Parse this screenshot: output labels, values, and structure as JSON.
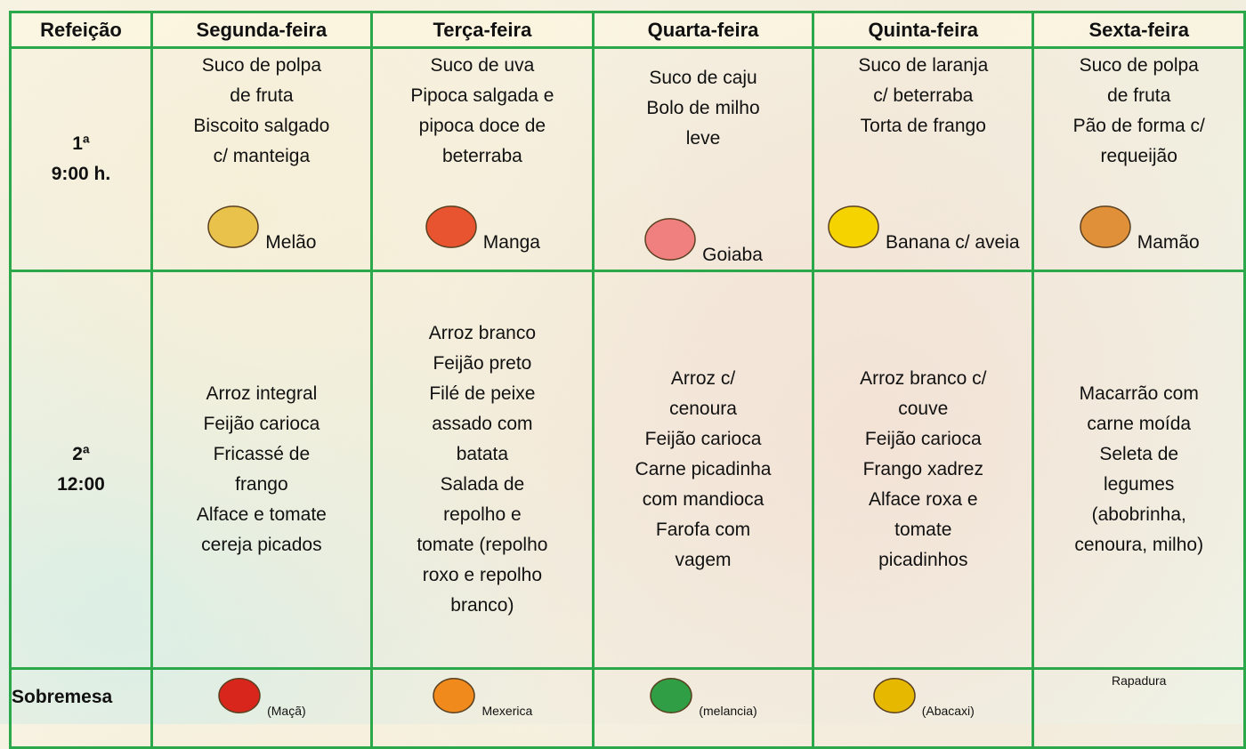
{
  "table": {
    "header": [
      "Refeição",
      "Segunda-feira",
      "Terça-feira",
      "Quarta-feira",
      "Quinta-feira",
      "Sexta-feira"
    ],
    "rows": [
      {
        "label": [
          "1ª",
          "9:00 h."
        ],
        "cells": [
          {
            "lines": [
              "Suco de polpa",
              "de fruta",
              "Biscoito salgado",
              "c/ manteiga"
            ],
            "fruit": "Melão"
          },
          {
            "lines": [
              "Suco de uva",
              "Pipoca salgada e",
              "pipoca doce de",
              "beterraba"
            ],
            "fruit": "Manga"
          },
          {
            "lines": [
              "Suco de caju",
              "Bolo de milho",
              "leve"
            ],
            "fruit": "Goiaba"
          },
          {
            "lines": [
              "Suco de laranja",
              "c/ beterraba",
              "Torta de frango"
            ],
            "fruit": "Banana c/ aveia"
          },
          {
            "lines": [
              "Suco de polpa",
              "de fruta",
              "Pão de forma c/",
              "requeijão"
            ],
            "fruit": "Mamão"
          }
        ]
      },
      {
        "label": [
          "2ª",
          "12:00"
        ],
        "cells": [
          {
            "lines": [
              "Arroz integral",
              "Feijão carioca",
              "Fricassé de",
              "frango",
              "Alface e tomate",
              "cereja picados"
            ]
          },
          {
            "lines": [
              "Arroz branco",
              "Feijão preto",
              "Filé de peixe",
              "assado com",
              "batata",
              "Salada de",
              "repolho e",
              "tomate (repolho",
              "roxo e repolho",
              "branco)"
            ]
          },
          {
            "lines": [
              "Arroz c/",
              "cenoura",
              "Feijão carioca",
              "Carne picadinha",
              "com mandioca",
              "Farofa com",
              "vagem"
            ]
          },
          {
            "lines": [
              "Arroz branco c/",
              "couve",
              "Feijão carioca",
              "Frango xadrez",
              "Alface roxa e",
              "tomate",
              "picadinhos"
            ]
          },
          {
            "lines": [
              "Macarrão com",
              "carne moída",
              "Seleta de",
              "legumes",
              "(abobrinha,",
              "cenoura, milho)"
            ]
          }
        ]
      },
      {
        "label": [
          "Sobremesa"
        ],
        "cells": [
          {
            "fruit": "(Maçã)"
          },
          {
            "fruit": "Mexerica"
          },
          {
            "fruit": "(melancia)"
          },
          {
            "fruit": "(Abacaxi)"
          },
          {
            "fruit": "Rapadura"
          }
        ]
      }
    ]
  }
}
